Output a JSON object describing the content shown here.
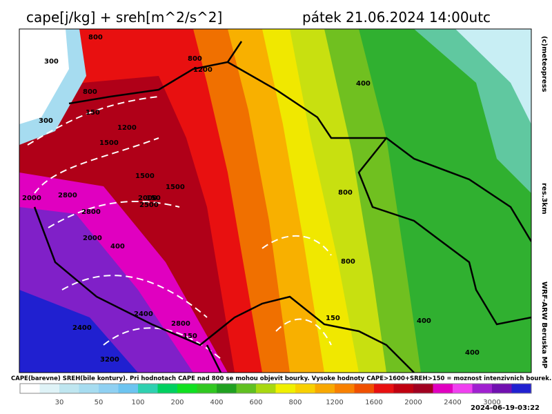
{
  "header": {
    "title": "cape[j/kg] + sreh[m^2/s^2]",
    "date": "pátek 21.06.2024 14:00utc"
  },
  "side_labels": [
    "(c)meteopress",
    "res.3km",
    "WRF-ARW Beruska MP"
  ],
  "map": {
    "labels": [
      "800",
      "300",
      "800",
      "1200",
      "800",
      "150",
      "300",
      "1200",
      "1500",
      "400",
      "1500",
      "1500",
      "2000",
      "2800",
      "2000",
      "2500",
      "150",
      "2800",
      "2000",
      "400",
      "800",
      "800",
      "2400",
      "2400",
      "2800",
      "150",
      "3200",
      "150",
      "400",
      "400"
    ]
  },
  "footnote": "CAPE(barevne) SREH(bile kontury). Pri hodnotach CAPE nad 800 se mohou objevit bourky. Vysoke hodnoty CAPE>1600+SREH>150 = moznost intenzivnich bourek.",
  "colorbar": {
    "colors": [
      "#ffffff",
      "#dff3f7",
      "#bfe6f0",
      "#a6dcf0",
      "#8fd0f2",
      "#6cc4f0",
      "#2fd0b0",
      "#00d060",
      "#10e020",
      "#30c820",
      "#20a020",
      "#60c020",
      "#a8d810",
      "#f0f000",
      "#f8d000",
      "#f8a800",
      "#f88000",
      "#f05000",
      "#e81010",
      "#c00010",
      "#a00020",
      "#e000c0",
      "#f040f0",
      "#a020d0",
      "#7010b0",
      "#2020d0"
    ],
    "labels": [
      30,
      50,
      100,
      200,
      400,
      600,
      800,
      1200,
      1600,
      2000,
      2400,
      3000
    ]
  },
  "timestamp": "2024-06-19-03:22"
}
